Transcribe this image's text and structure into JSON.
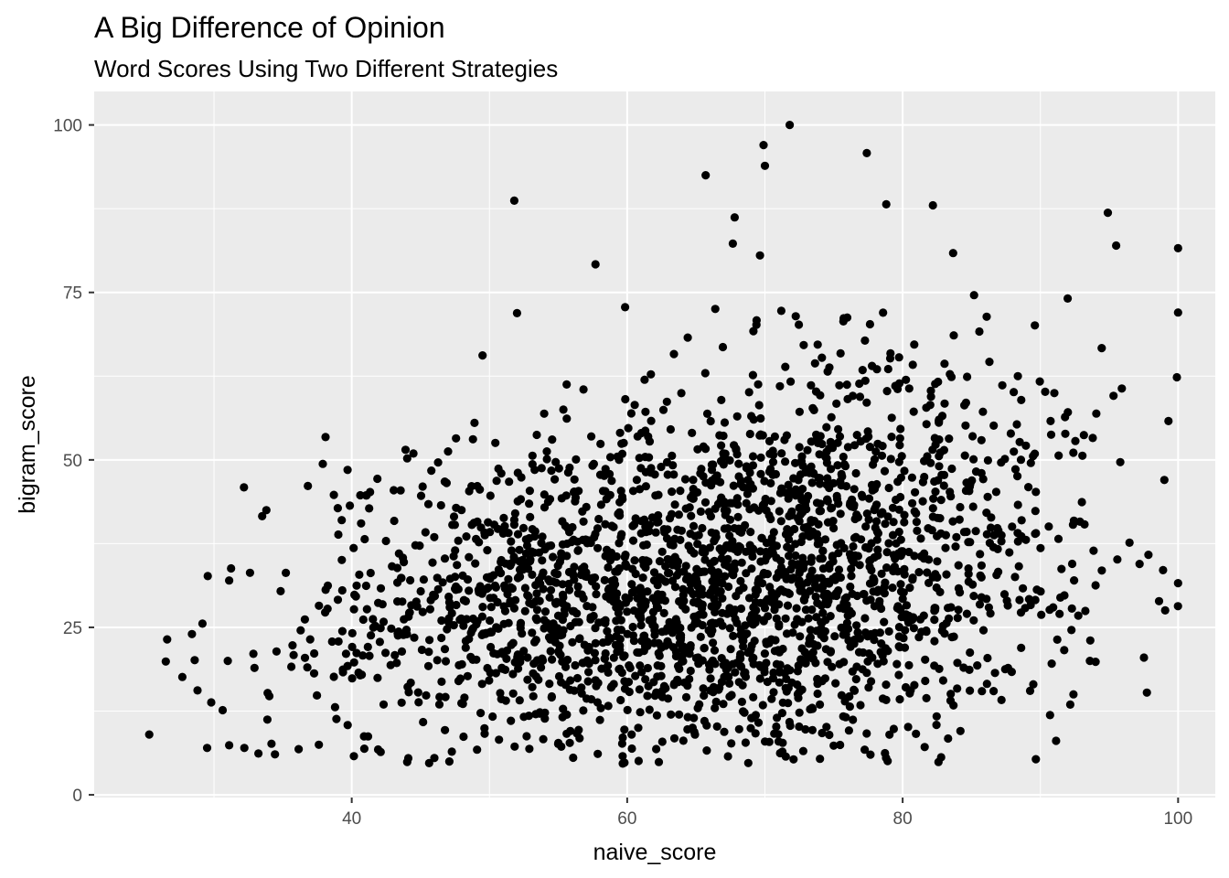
{
  "chart_data": {
    "type": "scatter",
    "title": "A Big Difference of Opinion",
    "subtitle": "Word Scores Using Two Different Strategies",
    "xlabel": "naive_score",
    "ylabel": "bigram_score",
    "xlim": [
      21.3,
      102.7
    ],
    "ylim": [
      -0.4,
      105
    ],
    "x_ticks": [
      40,
      60,
      80,
      100
    ],
    "y_ticks": [
      0,
      25,
      50,
      75,
      100
    ],
    "x_tick_labels": [
      "40",
      "60",
      "80",
      "100"
    ],
    "y_tick_labels": [
      "0",
      "25",
      "50",
      "75",
      "100"
    ],
    "grid": true,
    "legend": "none",
    "colors": {
      "panel": "#ebebeb",
      "grid": "#ffffff",
      "point": "#000000"
    },
    "point_count_approx": 2400,
    "outliers": [
      {
        "x": 71.8,
        "y": 100.0
      },
      {
        "x": 69.9,
        "y": 97.0
      },
      {
        "x": 70.0,
        "y": 93.9
      },
      {
        "x": 77.4,
        "y": 95.8
      },
      {
        "x": 65.7,
        "y": 92.5
      },
      {
        "x": 51.8,
        "y": 88.7
      },
      {
        "x": 82.2,
        "y": 88.0
      },
      {
        "x": 94.9,
        "y": 86.9
      },
      {
        "x": 95.5,
        "y": 82.0
      },
      {
        "x": 100.0,
        "y": 81.6
      },
      {
        "x": 100.0,
        "y": 72.0
      },
      {
        "x": 100.0,
        "y": 31.6
      },
      {
        "x": 99.3,
        "y": 55.8
      },
      {
        "x": 99.0,
        "y": 47.0
      },
      {
        "x": 25.3,
        "y": 9.0
      },
      {
        "x": 26.6,
        "y": 23.2
      },
      {
        "x": 26.5,
        "y": 19.9
      },
      {
        "x": 27.7,
        "y": 17.6
      },
      {
        "x": 28.4,
        "y": 24.0
      },
      {
        "x": 28.6,
        "y": 20.1
      },
      {
        "x": 29.8,
        "y": 13.8
      },
      {
        "x": 29.5,
        "y": 7.0
      },
      {
        "x": 31.1,
        "y": 7.4
      },
      {
        "x": 31.0,
        "y": 20.0
      },
      {
        "x": 31.1,
        "y": 32.0
      },
      {
        "x": 32.2,
        "y": 7.0
      },
      {
        "x": 33.5,
        "y": 41.6
      },
      {
        "x": 33.8,
        "y": 42.5
      },
      {
        "x": 37.9,
        "y": 49.4
      },
      {
        "x": 38.1,
        "y": 53.4
      },
      {
        "x": 39.7,
        "y": 48.5
      },
      {
        "x": 42.1,
        "y": 6.4
      },
      {
        "x": 46.0,
        "y": 5.5
      },
      {
        "x": 62.3,
        "y": 4.9
      },
      {
        "x": 82.6,
        "y": 4.9
      },
      {
        "x": 78.8,
        "y": 5.5
      },
      {
        "x": 57.7,
        "y": 79.2
      },
      {
        "x": 52.0,
        "y": 71.9
      },
      {
        "x": 49.5,
        "y": 65.6
      },
      {
        "x": 90.7,
        "y": 11.9
      },
      {
        "x": 92.4,
        "y": 15.0
      },
      {
        "x": 93.6,
        "y": 20.0
      }
    ],
    "clusters": [
      {
        "mx": 67,
        "my": 30,
        "sx": 11,
        "sy": 13,
        "weight": 1600
      },
      {
        "mx": 78,
        "my": 45,
        "sx": 9,
        "sy": 15,
        "weight": 450
      },
      {
        "mx": 52,
        "my": 27,
        "sx": 7,
        "sy": 12,
        "weight": 300
      },
      {
        "mx": 40,
        "my": 22,
        "sx": 5,
        "sy": 10,
        "weight": 70
      }
    ]
  }
}
